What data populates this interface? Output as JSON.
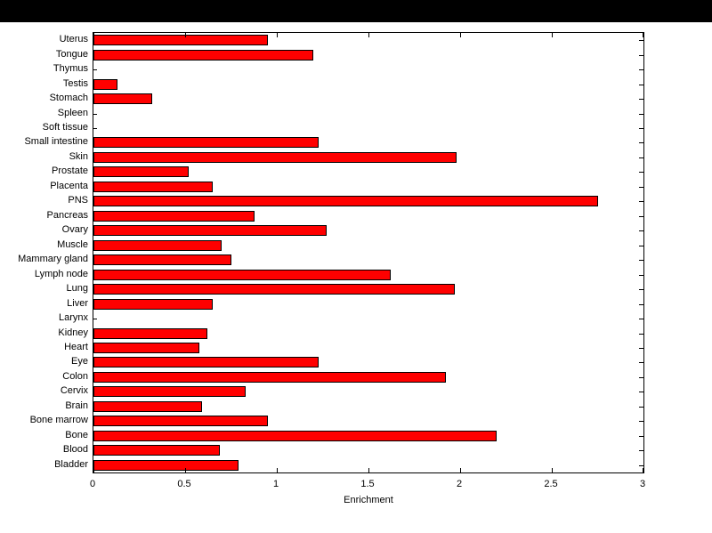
{
  "chart_data": {
    "type": "bar",
    "orientation": "horizontal",
    "title": "",
    "xlabel": "Enrichment",
    "ylabel": "",
    "xlim": [
      0,
      3
    ],
    "xticks": [
      0,
      0.5,
      1,
      1.5,
      2,
      2.5,
      3
    ],
    "xtick_labels": [
      "0",
      "0.5",
      "1",
      "1.5",
      "2",
      "2.5",
      "3"
    ],
    "grid": false,
    "legend": false,
    "bar_color": "#ff0000",
    "bar_edge_color": "#000000",
    "categories": [
      "Uterus",
      "Tongue",
      "Thymus",
      "Testis",
      "Stomach",
      "Spleen",
      "Soft tissue",
      "Small intestine",
      "Skin",
      "Prostate",
      "Placenta",
      "PNS",
      "Pancreas",
      "Ovary",
      "Muscle",
      "Mammary gland",
      "Lymph node",
      "Lung",
      "Liver",
      "Larynx",
      "Kidney",
      "Heart",
      "Eye",
      "Colon",
      "Cervix",
      "Brain",
      "Bone marrow",
      "Bone",
      "Blood",
      "Bladder"
    ],
    "values": [
      0.95,
      1.2,
      0,
      0.13,
      0.32,
      0,
      0,
      1.23,
      1.98,
      0.52,
      0.65,
      2.75,
      0.88,
      1.27,
      0.7,
      0.75,
      1.62,
      1.97,
      0.65,
      0,
      0.62,
      0.58,
      1.23,
      1.92,
      0.83,
      0.59,
      0.95,
      2.2,
      0.69,
      0.79
    ]
  }
}
